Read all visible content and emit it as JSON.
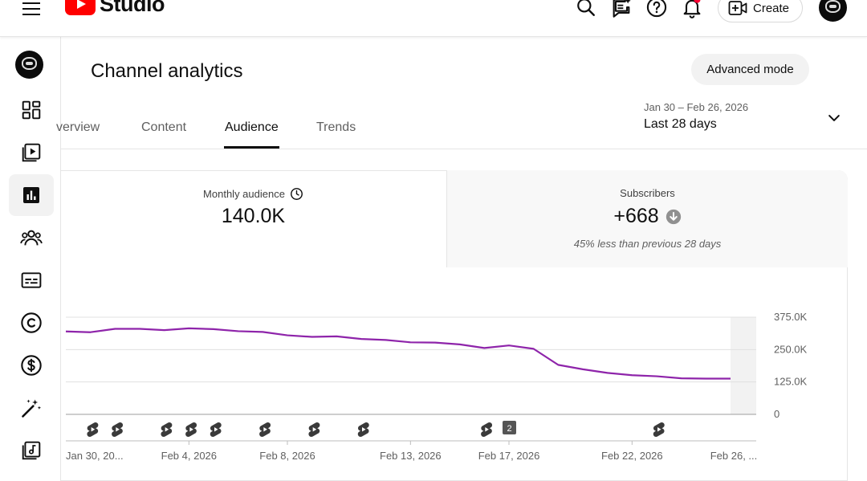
{
  "app": {
    "logo_text": "Studio",
    "create_label": "Create"
  },
  "header": {
    "title": "Channel analytics",
    "advanced_mode": "Advanced mode",
    "tabs": [
      {
        "label": "Overview",
        "visible_label": "verview",
        "active": false
      },
      {
        "label": "Content",
        "active": false
      },
      {
        "label": "Audience",
        "active": true
      },
      {
        "label": "Trends",
        "active": false
      }
    ],
    "date_range": "Jan 30 – Feb 26, 2026",
    "date_label": "Last 28 days"
  },
  "sidebar": {
    "items": [
      {
        "name": "dashboard-icon"
      },
      {
        "name": "content-icon"
      },
      {
        "name": "analytics-icon",
        "active": true
      },
      {
        "name": "community-icon"
      },
      {
        "name": "subtitles-icon"
      },
      {
        "name": "copyright-icon"
      },
      {
        "name": "earn-icon"
      },
      {
        "name": "customization-icon"
      },
      {
        "name": "audio-library-icon"
      }
    ]
  },
  "metrics": {
    "monthly_audience": {
      "label": "Monthly audience",
      "value": "140.0K"
    },
    "subscribers": {
      "label": "Subscribers",
      "value": "+668",
      "note": "45% less than previous 28 days"
    }
  },
  "chart_data": {
    "type": "line",
    "y_ticks": [
      "375.0K",
      "250.0K",
      "125.0K",
      "0"
    ],
    "ylim": [
      0,
      375000
    ],
    "x_labels": [
      "Jan 30, 20...",
      "Feb 4, 2026",
      "Feb 8, 2026",
      "Feb 13, 2026",
      "Feb 17, 2026",
      "Feb 22, 2026",
      "Feb 26, ..."
    ],
    "x_label_days": [
      0,
      5,
      9,
      14,
      18,
      23,
      27
    ],
    "series": [
      {
        "color": "#8e24aa",
        "x_days": [
          0,
          1,
          2,
          3,
          4,
          5,
          6,
          7,
          8,
          9,
          10,
          11,
          12,
          13,
          14,
          15,
          16,
          17,
          18,
          19,
          20,
          21,
          22,
          23,
          24,
          25,
          26,
          27
        ],
        "values": [
          320000,
          317000,
          330000,
          330000,
          325000,
          332000,
          329000,
          321000,
          318000,
          305000,
          299000,
          301000,
          291000,
          287000,
          278000,
          277000,
          270000,
          256000,
          266000,
          253000,
          191000,
          174000,
          160000,
          151000,
          147000,
          139000,
          138000,
          138000
        ]
      }
    ],
    "shorts_markers_days": [
      1,
      2,
      4,
      5,
      6,
      8,
      10,
      12,
      17,
      24
    ],
    "grouped_marker": {
      "day": 18,
      "count": "2"
    },
    "partial_period_from_day": 26
  }
}
